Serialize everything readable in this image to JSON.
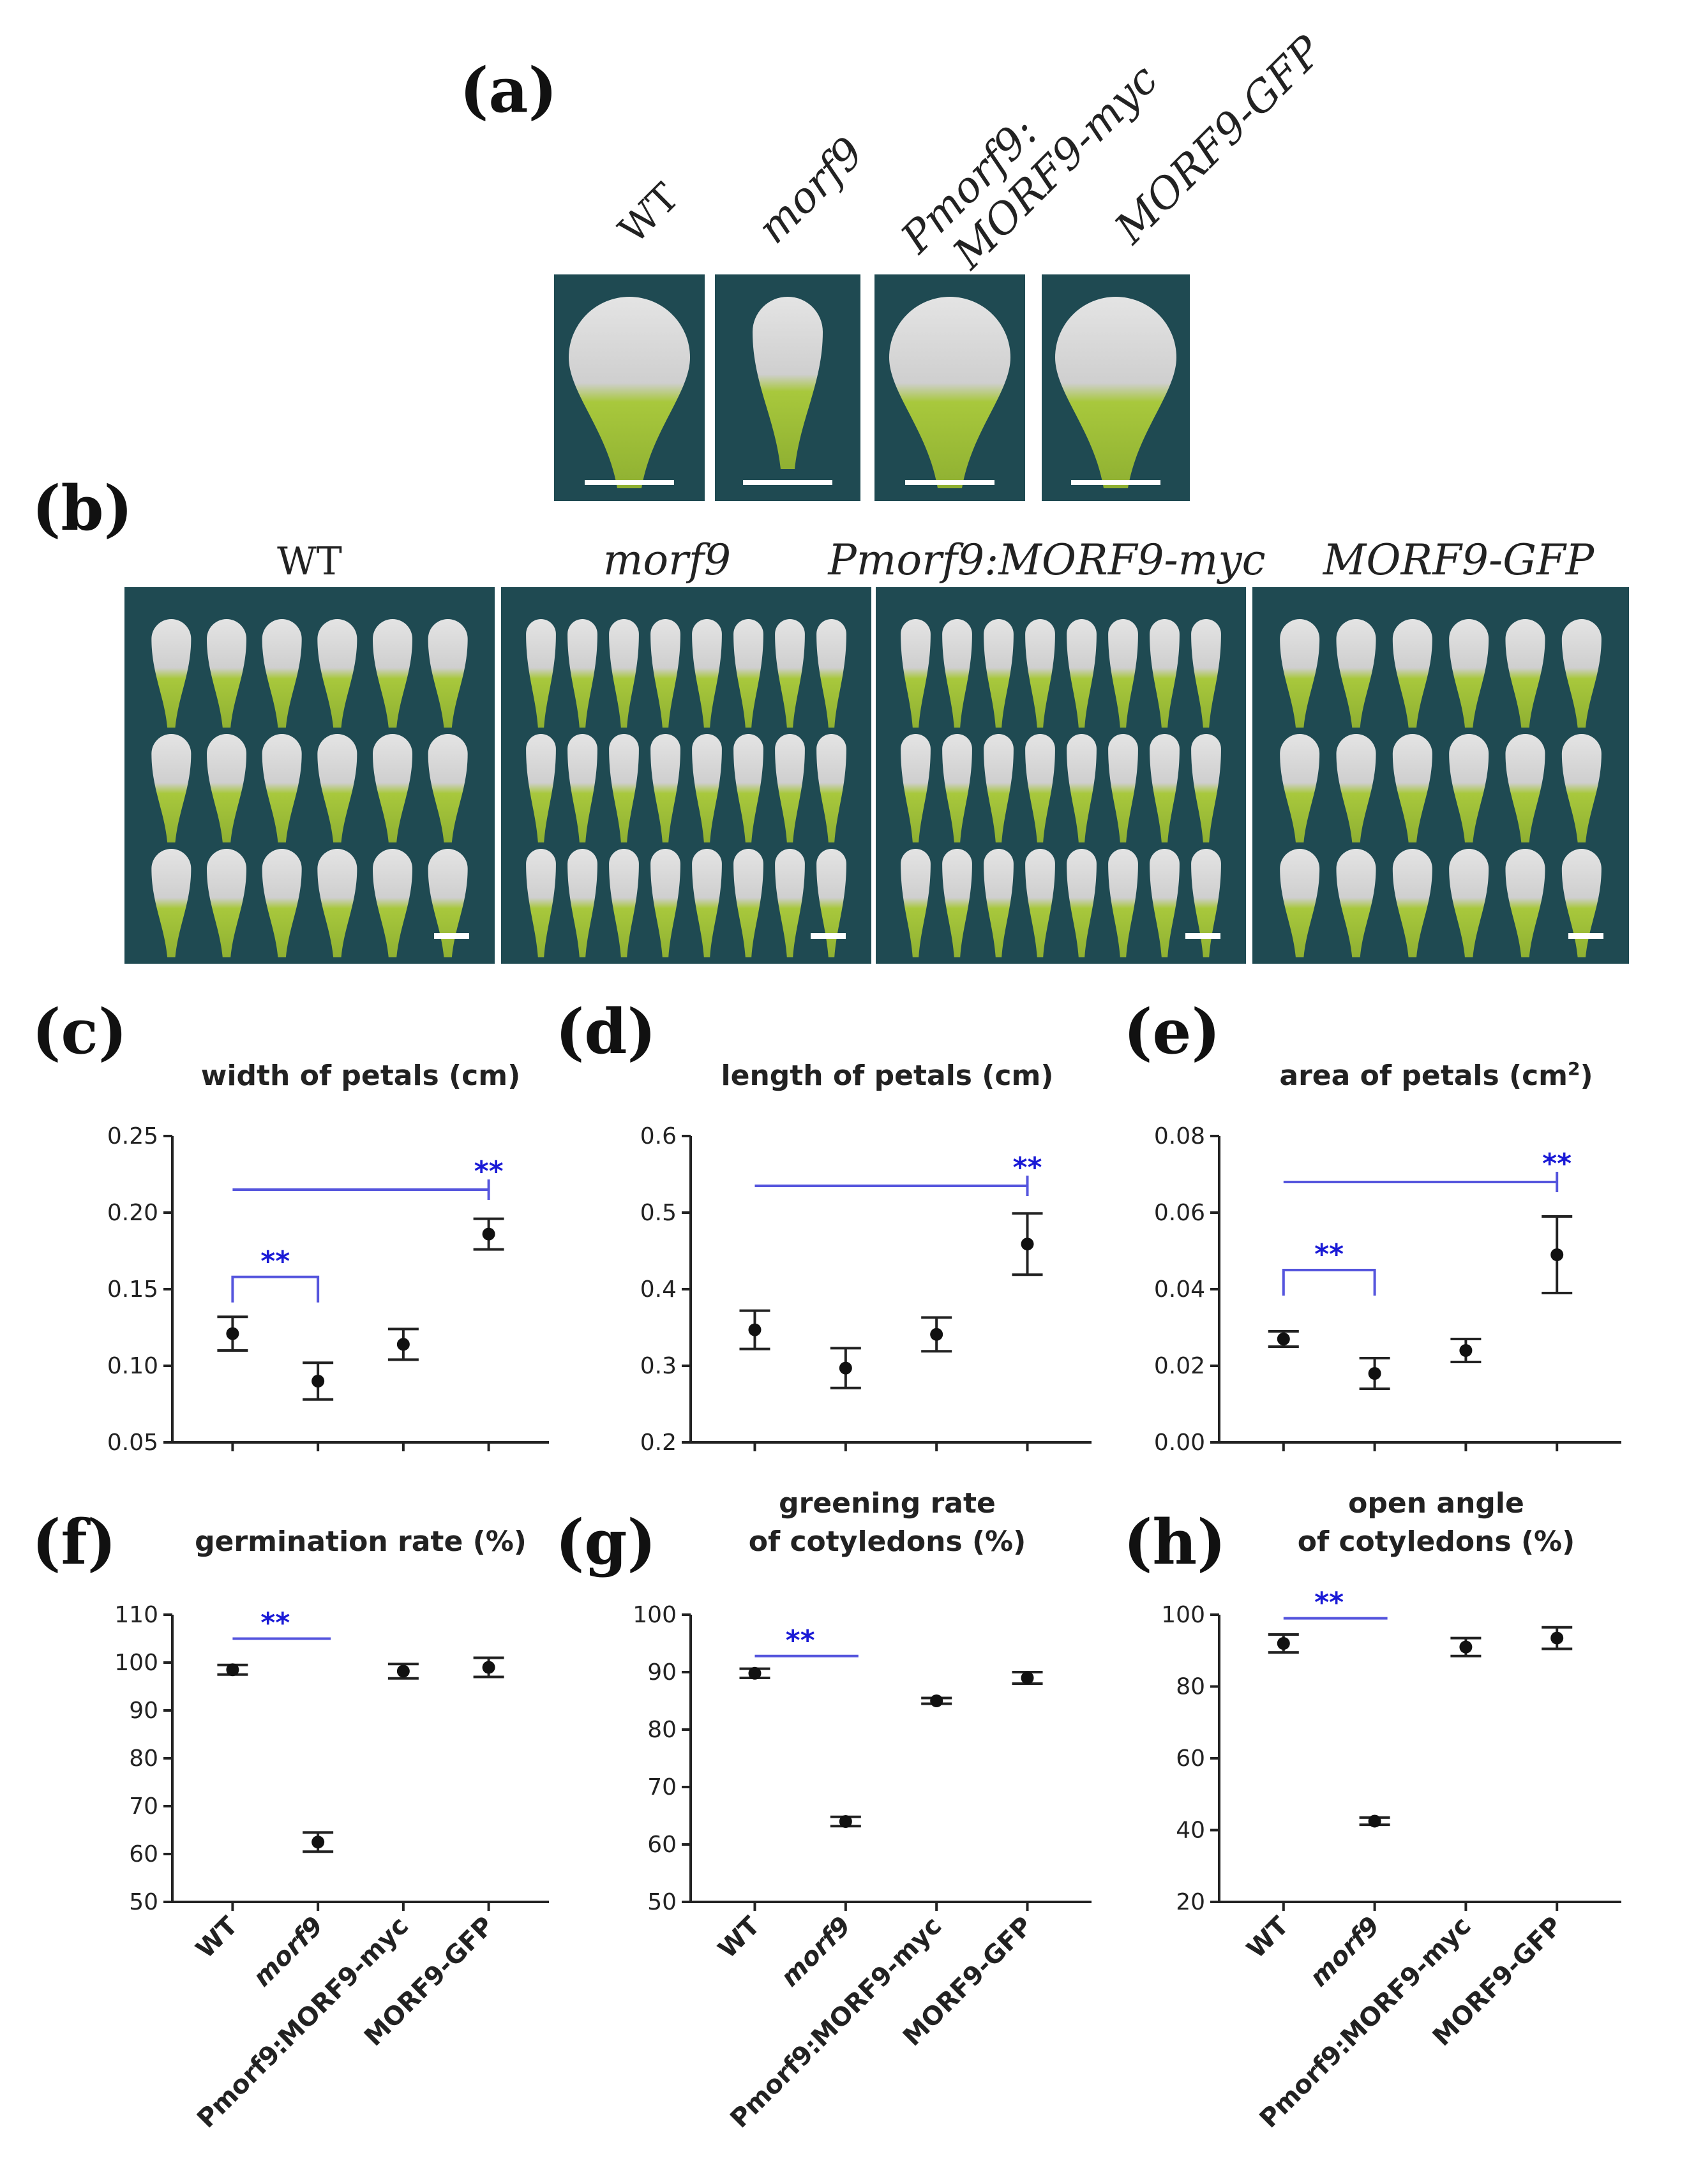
{
  "figure": {
    "panel_a": {
      "letter": "(a)",
      "genotypes": [
        {
          "line1": "WT",
          "line2": ""
        },
        {
          "line1": "morf9",
          "line2": ""
        },
        {
          "line1": "Pmorf9:",
          "line2": "MORF9-myc"
        },
        {
          "line1": "MORF9-GFP",
          "line2": ""
        }
      ]
    },
    "panel_b": {
      "letter": "(b)",
      "genotypes": [
        "WT",
        "morf9",
        "Pmorf9:MORF9-myc",
        "MORF9-GFP"
      ],
      "petals_per_row": [
        6,
        8,
        8,
        6
      ],
      "rows": 3
    },
    "categories": [
      "WT",
      "morf9",
      "Pmorf9:MORF9-myc",
      "MORF9-GFP"
    ],
    "significance_mark": "**"
  },
  "colors": {
    "photo_background": "#1f4a52",
    "petal_white": "#dcdcdc",
    "petal_green": "#a8c83c",
    "significance": "#1a1ad6",
    "axis": "#222222"
  },
  "chart_data": [
    {
      "panel": "(c)",
      "type": "scatter",
      "title": "width of petals (cm)",
      "title_super": "",
      "categories": [
        "WT",
        "morf9",
        "Pmorf9:MORF9-myc",
        "MORF9-GFP"
      ],
      "values": [
        0.121,
        0.09,
        0.114,
        0.186
      ],
      "errors": [
        0.011,
        0.012,
        0.01,
        0.01
      ],
      "ylim": [
        0.05,
        0.25
      ],
      "yticks": [
        "0.05",
        "0.10",
        "0.15",
        "0.20",
        "0.25"
      ],
      "yticks_num": [
        0.05,
        0.1,
        0.15,
        0.2,
        0.25
      ],
      "significance": [
        {
          "from": 0,
          "to": 1,
          "style": "bracket",
          "y": 0.158,
          "label": "**"
        },
        {
          "from": 0,
          "to": 3,
          "style": "long",
          "y": 0.215,
          "label": "**"
        }
      ]
    },
    {
      "panel": "(d)",
      "type": "scatter",
      "title": "length of petals (cm)",
      "title_super": "",
      "categories": [
        "WT",
        "morf9",
        "Pmorf9:MORF9-myc",
        "MORF9-GFP"
      ],
      "values": [
        0.347,
        0.297,
        0.341,
        0.459
      ],
      "errors": [
        0.025,
        0.026,
        0.022,
        0.04
      ],
      "ylim": [
        0.2,
        0.6
      ],
      "yticks": [
        "0.2",
        "0.3",
        "0.4",
        "0.5",
        "0.6"
      ],
      "yticks_num": [
        0.2,
        0.3,
        0.4,
        0.5,
        0.6
      ],
      "significance": [
        {
          "from": 0,
          "to": 3,
          "style": "long",
          "y": 0.535,
          "label": "**"
        }
      ]
    },
    {
      "panel": "(e)",
      "type": "scatter",
      "title": "area of petals (cm",
      "title_super": "2",
      "title_end": ")",
      "categories": [
        "WT",
        "morf9",
        "Pmorf9:MORF9-myc",
        "MORF9-GFP"
      ],
      "values": [
        0.027,
        0.018,
        0.024,
        0.049
      ],
      "errors": [
        0.002,
        0.004,
        0.003,
        0.01
      ],
      "ylim": [
        0.0,
        0.08
      ],
      "yticks": [
        "0.00",
        "0.02",
        "0.04",
        "0.06",
        "0.08"
      ],
      "yticks_num": [
        0.0,
        0.02,
        0.04,
        0.06,
        0.08
      ],
      "significance": [
        {
          "from": 0,
          "to": 1,
          "style": "bracket",
          "y": 0.045,
          "label": "**"
        },
        {
          "from": 0,
          "to": 3,
          "style": "long",
          "y": 0.068,
          "label": "**"
        }
      ]
    },
    {
      "panel": "(f)",
      "type": "scatter",
      "title": "germination rate (%)",
      "title_super": "",
      "categories": [
        "WT",
        "morf9",
        "Pmorf9:MORF9-myc",
        "MORF9-GFP"
      ],
      "values": [
        98.5,
        62.5,
        98.2,
        99.0
      ],
      "errors": [
        1.0,
        2.0,
        1.5,
        2.0
      ],
      "ylim": [
        50,
        110
      ],
      "yticks": [
        "50",
        "60",
        "70",
        "80",
        "90",
        "100",
        "110"
      ],
      "yticks_num": [
        50,
        60,
        70,
        80,
        90,
        100,
        110
      ],
      "significance": [
        {
          "from": 0,
          "to": 1,
          "style": "line",
          "y": 105,
          "label": "**"
        }
      ]
    },
    {
      "panel": "(g)",
      "type": "scatter",
      "title": "greening rate",
      "title_line2": "of cotyledons (%)",
      "title_super": "",
      "categories": [
        "WT",
        "morf9",
        "Pmorf9:MORF9-myc",
        "MORF9-GFP"
      ],
      "values": [
        89.8,
        64.0,
        85.0,
        89.0
      ],
      "errors": [
        0.8,
        0.8,
        0.5,
        1.0
      ],
      "ylim": [
        50,
        100
      ],
      "yticks": [
        "50",
        "60",
        "70",
        "80",
        "90",
        "100"
      ],
      "yticks_num": [
        50,
        60,
        70,
        80,
        90,
        100
      ],
      "significance": [
        {
          "from": 0,
          "to": 1,
          "style": "line",
          "y": 92.8,
          "label": "**"
        }
      ]
    },
    {
      "panel": "(h)",
      "type": "scatter",
      "title": "open angle",
      "title_line2": "of cotyledons (%)",
      "title_super": "",
      "categories": [
        "WT",
        "morf9",
        "Pmorf9:MORF9-myc",
        "MORF9-GFP"
      ],
      "values": [
        92.0,
        42.5,
        91.0,
        93.5
      ],
      "errors": [
        2.5,
        1.0,
        2.5,
        3.0
      ],
      "ylim": [
        20,
        100
      ],
      "yticks": [
        "20",
        "40",
        "60",
        "80",
        "100"
      ],
      "yticks_num": [
        20,
        40,
        60,
        80,
        100
      ],
      "significance": [
        {
          "from": 0,
          "to": 1,
          "style": "line",
          "y": 99,
          "label": "**"
        }
      ]
    }
  ]
}
